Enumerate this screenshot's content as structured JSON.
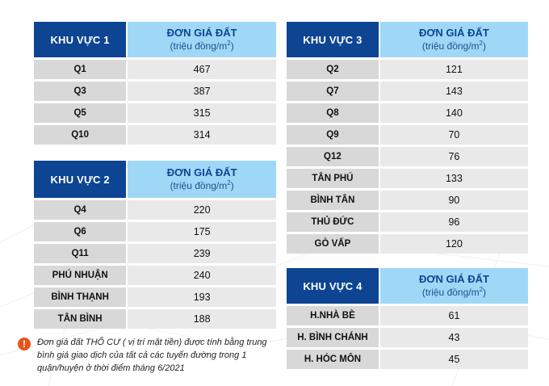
{
  "price_header": {
    "line1": "ĐƠN GIÁ ĐẤT",
    "line2_prefix": "(triệu đồng/m",
    "line2_sup": "2",
    "line2_suffix": ")"
  },
  "tables": [
    {
      "region": "KHU VỰC 1",
      "rows": [
        {
          "name": "Q1",
          "value": "467"
        },
        {
          "name": "Q3",
          "value": "387"
        },
        {
          "name": "Q5",
          "value": "315"
        },
        {
          "name": "Q10",
          "value": "314"
        }
      ]
    },
    {
      "region": "KHU VỰC 2",
      "rows": [
        {
          "name": "Q4",
          "value": "220"
        },
        {
          "name": "Q6",
          "value": "175"
        },
        {
          "name": "Q11",
          "value": "239"
        },
        {
          "name": "PHÚ NHUẬN",
          "value": "240"
        },
        {
          "name": "BÌNH THẠNH",
          "value": "193"
        },
        {
          "name": "TÂN BÌNH",
          "value": "188"
        }
      ]
    },
    {
      "region": "KHU VỰC 3",
      "rows": [
        {
          "name": "Q2",
          "value": "121"
        },
        {
          "name": "Q7",
          "value": "143"
        },
        {
          "name": "Q8",
          "value": "140"
        },
        {
          "name": "Q9",
          "value": "70"
        },
        {
          "name": "Q12",
          "value": "76"
        },
        {
          "name": "TÂN PHÚ",
          "value": "133"
        },
        {
          "name": "BÌNH TÂN",
          "value": "90"
        },
        {
          "name": "THỦ ĐỨC",
          "value": "96"
        },
        {
          "name": "GÒ VẤP",
          "value": "120"
        }
      ]
    },
    {
      "region": "KHU VỰC 4",
      "rows": [
        {
          "name": "H.NHÀ BÈ",
          "value": "61"
        },
        {
          "name": "H. BÌNH CHÁNH",
          "value": "43"
        },
        {
          "name": "H. HÓC MÔN",
          "value": "45"
        }
      ]
    }
  ],
  "note": {
    "icon": "exclamation-icon",
    "icon_glyph": "!",
    "text": "Đơn giá đất THỔ CƯ ( vị trí mặt tiền) được tính bằng trung bình giá giao dịch của tất cả các tuyến đường trong 1 quận/huyện ở thời điểm tháng 6/2021"
  },
  "colors": {
    "header_dark": "#0d4592",
    "header_light": "#9fd8f7",
    "row_name": "#d8d8d8",
    "row_value": "#e9e9e9",
    "warning": "#e8541c"
  }
}
